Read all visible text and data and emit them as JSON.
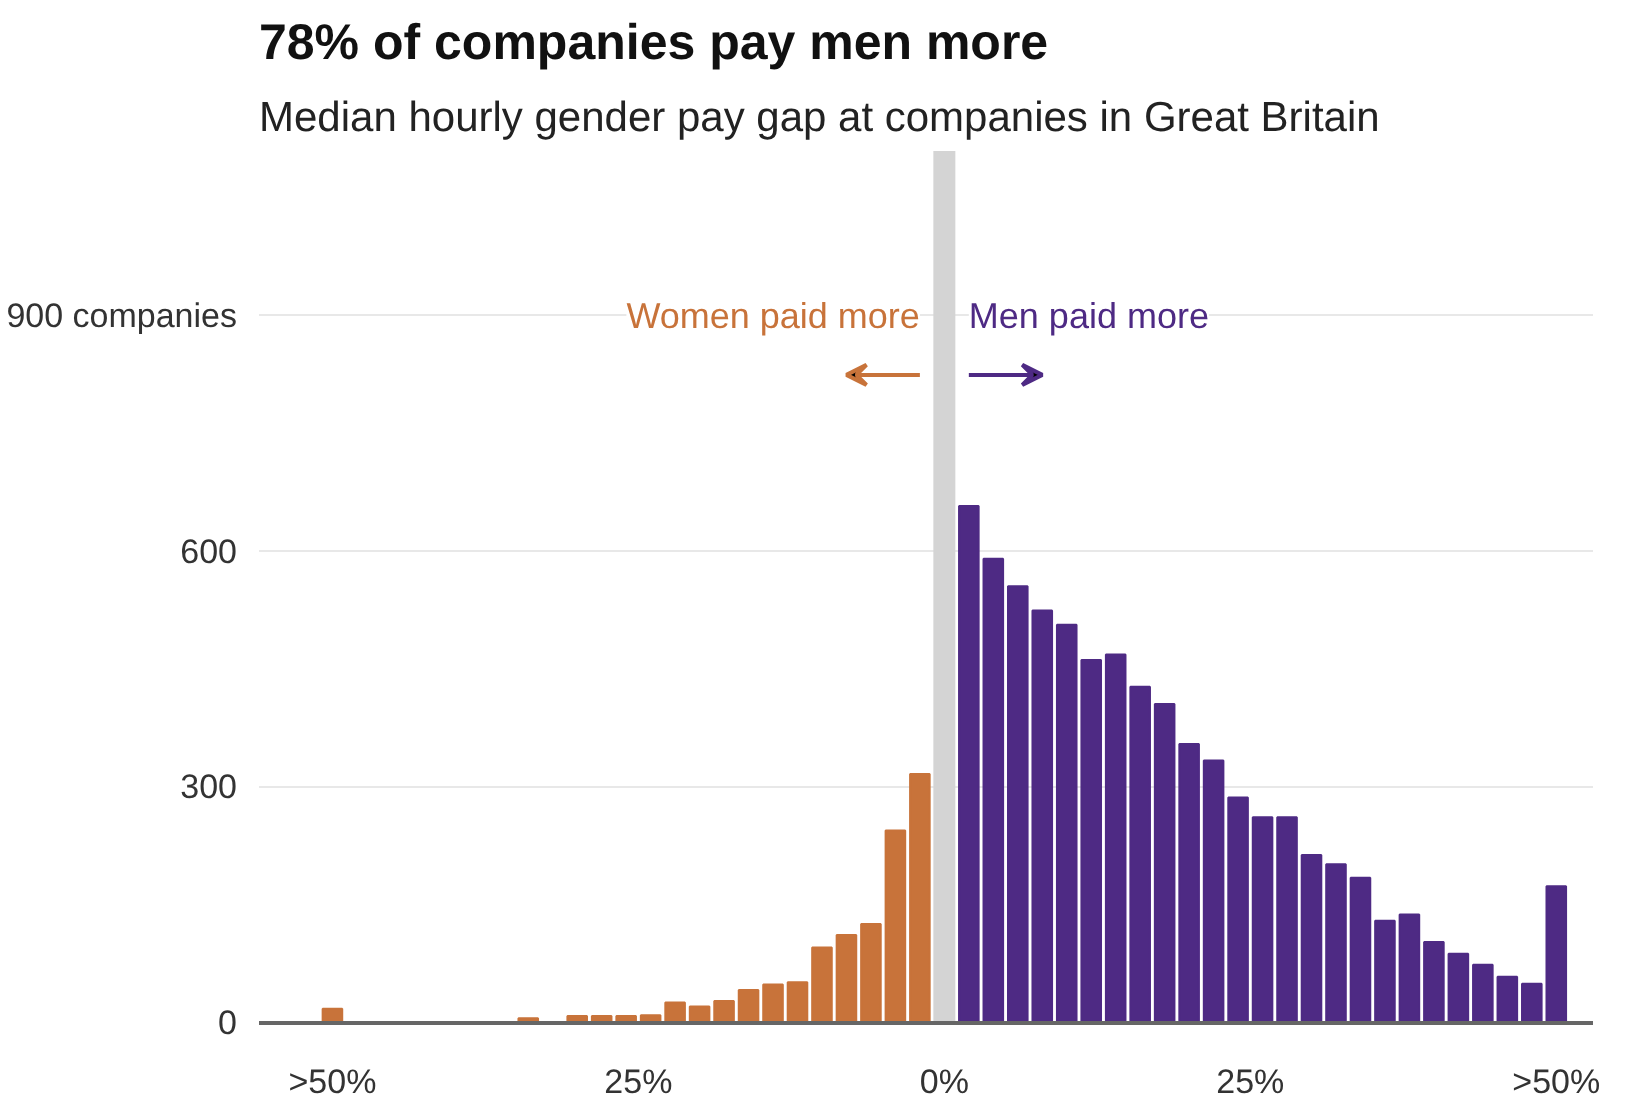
{
  "chart_data": {
    "type": "bar",
    "title": "78% of companies pay men more",
    "subtitle": "Median hourly gender pay gap at companies in Great Britain",
    "series": [
      {
        "name": "Women paid more",
        "color": "#c8733a",
        "x": [
          -50,
          -36,
          -34,
          -32,
          -30,
          -28,
          -26,
          -24,
          -22,
          -20,
          -18,
          -16,
          -14,
          -12,
          -10,
          -8,
          -6,
          -4,
          -2
        ],
        "values": [
          18,
          null,
          6,
          null,
          9,
          9,
          9,
          10,
          26,
          21,
          28,
          42,
          49,
          52,
          96,
          112,
          126,
          245,
          317
        ]
      },
      {
        "name": "Men paid more",
        "color": "#4e2a84",
        "x": [
          2,
          4,
          6,
          8,
          10,
          12,
          14,
          16,
          18,
          20,
          22,
          24,
          26,
          28,
          30,
          32,
          34,
          36,
          38,
          40,
          42,
          44,
          46,
          48,
          50
        ],
        "values": [
          658,
          591,
          556,
          525,
          507,
          462,
          469,
          428,
          406,
          355,
          334,
          287,
          262,
          262,
          214,
          202,
          185,
          130,
          138,
          103,
          88,
          74,
          59,
          50,
          174
        ]
      }
    ],
    "xlim": [
      -56,
      53
    ],
    "xticks": [
      {
        "value": -50,
        "label": ">50%"
      },
      {
        "value": -25,
        "label": "25%"
      },
      {
        "value": 0,
        "label": "0%"
      },
      {
        "value": 25,
        "label": "25%"
      },
      {
        "value": 50,
        "label": ">50%"
      }
    ],
    "ylim": [
      0,
      1110
    ],
    "yticks": [
      0,
      300,
      600,
      {
        "value": 900,
        "label": "900 companies"
      }
    ],
    "ref_lines": [
      {
        "axis": "x",
        "value": 0,
        "color": "#d4d4d4"
      }
    ],
    "grid": "y"
  }
}
